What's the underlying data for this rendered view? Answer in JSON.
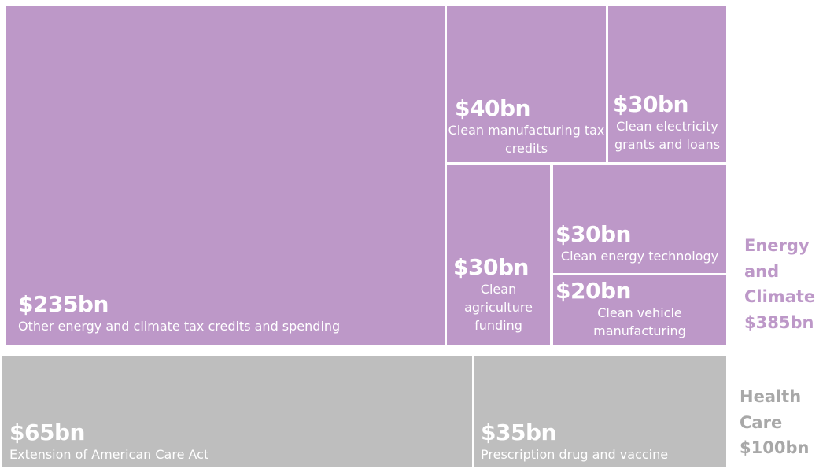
{
  "chart_data": {
    "type": "treemap",
    "groups": [
      {
        "name": "Energy and Climate",
        "total": "$385bn",
        "label_lines": [
          "Energy",
          "and",
          "Climate",
          "$385bn"
        ],
        "color": "#bd98c8",
        "label_color": "#bd98c8",
        "items": [
          {
            "value": 235,
            "value_label": "$235bn",
            "desc_lines": [
              "Other energy and climate tax credits and spending"
            ]
          },
          {
            "value": 40,
            "value_label": "$40bn",
            "desc_lines": [
              "Clean manufacturing tax",
              "credits"
            ]
          },
          {
            "value": 30,
            "value_label": "$30bn",
            "desc_lines": [
              "Clean electricity",
              "grants and loans"
            ]
          },
          {
            "value": 30,
            "value_label": "$30bn",
            "desc_lines": [
              "Clean",
              "agriculture",
              "funding"
            ]
          },
          {
            "value": 30,
            "value_label": "$30bn",
            "desc_lines": [
              "Clean energy technology"
            ]
          },
          {
            "value": 20,
            "value_label": "$20bn",
            "desc_lines": [
              "Clean vehicle",
              "manufacturing"
            ]
          }
        ]
      },
      {
        "name": "Health Care",
        "total": "$100bn",
        "label_lines": [
          "Health",
          "Care",
          "$100bn"
        ],
        "color": "#bebebe",
        "label_color": "#a8a8a8",
        "items": [
          {
            "value": 65,
            "value_label": "$65bn",
            "desc_lines": [
              "Extension of American Care Act"
            ]
          },
          {
            "value": 35,
            "value_label": "$35bn",
            "desc_lines": [
              "Prescription drug and vaccine coverage"
            ]
          }
        ]
      }
    ]
  }
}
